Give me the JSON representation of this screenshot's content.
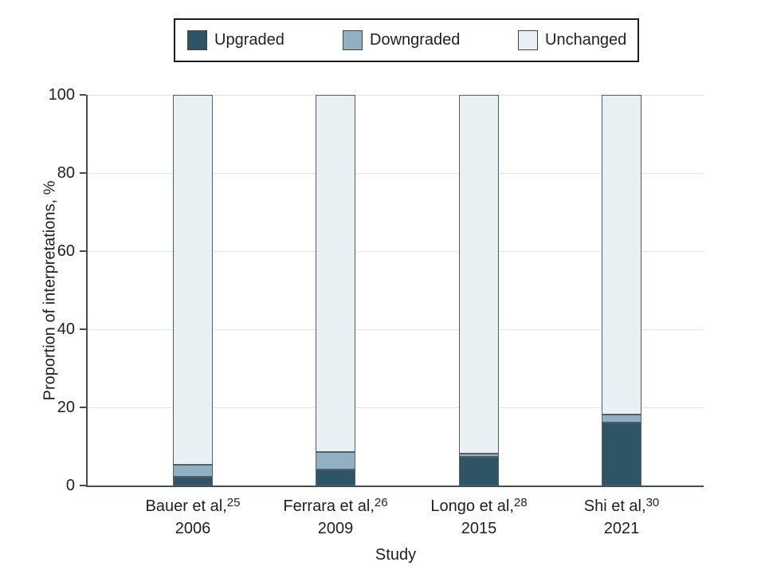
{
  "chart_data": {
    "type": "bar",
    "stacked": true,
    "xlabel": "Study",
    "ylabel": "Proportion of interpretations, %",
    "ylim": [
      0,
      100
    ],
    "yticks": [
      0,
      20,
      40,
      60,
      80,
      100
    ],
    "grid": "horizontal",
    "legend_position": "top",
    "categories": [
      {
        "author": "Bauer et al,",
        "ref": "25",
        "year": "2006"
      },
      {
        "author": "Ferrara et al,",
        "ref": "26",
        "year": "2009"
      },
      {
        "author": "Longo et al,",
        "ref": "28",
        "year": "2015"
      },
      {
        "author": "Shi et al,",
        "ref": "30",
        "year": "2021"
      }
    ],
    "series": [
      {
        "name": "Upgraded",
        "color": "#2e5565",
        "values": [
          2.3,
          4.1,
          7.3,
          16.2
        ]
      },
      {
        "name": "Downgraded",
        "color": "#8fb1c1",
        "values": [
          3.1,
          4.5,
          0.8,
          2.0
        ]
      },
      {
        "name": "Unchanged",
        "color": "#e9f0f3",
        "values": [
          94.6,
          91.4,
          91.9,
          81.8
        ]
      }
    ],
    "colors": {
      "axis": "#434e54",
      "gridline": "#e3e3e3",
      "bar_outline": "#545f64",
      "text": "#1f1f1f"
    }
  }
}
